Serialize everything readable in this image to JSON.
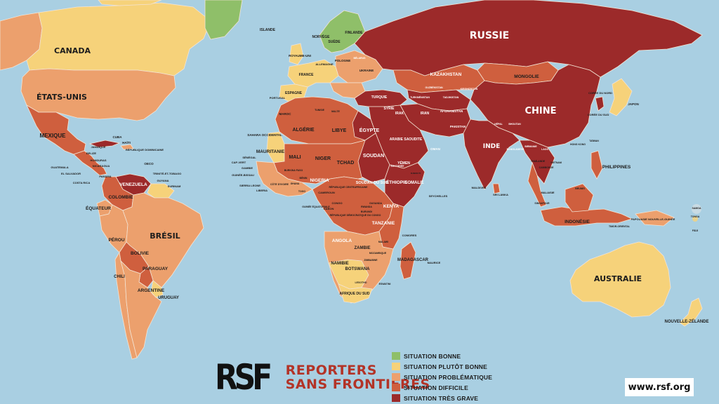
{
  "colors": {
    "ocean": "#a9cfe2",
    "bonne": "#8fbf69",
    "plutot_bonne": "#f6d27a",
    "problematique": "#eca06d",
    "difficile": "#cf5f3e",
    "tres_grave": "#9c2a2a",
    "border": "#f3e4d4"
  },
  "legend": [
    {
      "label": "SITUATION BONNE",
      "color": "#8fbf69"
    },
    {
      "label": "SITUATION PLUTÔT BONNE",
      "color": "#f6d27a"
    },
    {
      "label": "SITUATION PROBLÉMATIQUE",
      "color": "#eca06d"
    },
    {
      "label": "SITUATION DIFFICILE",
      "color": "#cf5f3e"
    },
    {
      "label": "SITUATION TRÈS GRAVE",
      "color": "#9c2a2a"
    }
  ],
  "logo": {
    "mark": "RSF",
    "line1": "REPORTERS",
    "line2": "SANS FRONTIÈRES"
  },
  "url": "www.rsf.org",
  "labels": {
    "russie": "RUSSIE",
    "canada": "CANADA",
    "etats_unis": "ÉTATS-UNIS",
    "chine": "CHINE",
    "australie": "AUSTRALIE",
    "bresil": "BRÉSIL",
    "inde": "INDE",
    "mexique": "MEXIQUE",
    "kazakhstan": "KAZAKHSTAN",
    "mongolie": "MONGOLIE",
    "algerie": "ALGÉRIE",
    "libye": "LIBYE",
    "egypte": "ÉGYPTE",
    "mali": "MALI",
    "niger": "NIGER",
    "tchad": "TCHAD",
    "soudan": "SOUDAN",
    "mauritanie": "MAURITANIE",
    "nigeria": "NIGERIA",
    "ethiopie": "ÉTHIOPIE",
    "somalie": "SOMALIE",
    "kenya": "KENYA",
    "tanzanie": "TANZANIE",
    "angola": "ANGOLA",
    "zambie": "ZAMBIE",
    "namibie": "NAMIBIE",
    "botswana": "BOTSWANA",
    "madagascar": "MADAGASCAR",
    "venezuela": "VENEZUELA",
    "colombie": "COLOMBIE",
    "equateur": "ÉQUATEUR",
    "perou": "PÉROU",
    "bolivie": "BOLIVIE",
    "paraguay": "PARAGUAY",
    "argentine": "ARGENTINE",
    "uruguay": "URUGUAY",
    "chili": "CHILI",
    "indonesie": "INDONÉSIE",
    "philippines": "PHILIPPINES",
    "nouvelle_zelande": "NOUVELLE-ZÉLANDE",
    "islande": "ISLANDE",
    "norvege": "NORVÈGE",
    "suede": "SUÈDE",
    "finlande": "FINLANDE",
    "royaume_uni": "ROYAUME-UNI",
    "france": "FRANCE",
    "espagne": "ESPAGNE",
    "portugal": "PORTUGAL",
    "allemagne": "ALLEMAGNE",
    "pologne": "POLOGNE",
    "ukraine": "UKRAINE",
    "belarus": "BÉLARUS",
    "turquie": "TURQUIE",
    "syrie": "SYRIE",
    "irak": "IRAK",
    "iran": "IRAN",
    "arabie_saoudite": "ARABIE SAOUDITE",
    "yemen": "YÉMEN",
    "oman": "OMAN",
    "afghanistan": "AFGHANISTAN",
    "pakistan": "PAKISTAN",
    "turkmenistan": "TURKMÉNISTAN",
    "ouzbekistan": "OUZBÉKISTAN",
    "kirghizistan": "KIRGHIZISTAN",
    "tadjikistan": "TADJIKISTAN",
    "coree_nord": "CORÉE DU NORD",
    "coree_sud": "CORÉE DU SUD",
    "japon": "JAPON",
    "maroc": "MAROC",
    "tunisie": "TUNISIE",
    "malte": "MALTE",
    "sahara_occidental": "SAHARA OCCIDENTAL",
    "senegal": "SÉNÉGAL",
    "cap_vert": "CAP-VERT",
    "gambie": "GAMBIE",
    "guinee_bissau": "GUINÉE-BISSAU",
    "guinee": "GUINÉE",
    "sierra_leone": "SIERRA LEONE",
    "liberia": "LIBERIA",
    "cote_ivoire": "CÔTE D'IVOIRE",
    "burkina": "BURKINA FASO",
    "ghana": "GHANA",
    "togo": "TOGO",
    "benin": "BÉNIN",
    "cameroun": "CAMEROUN",
    "rca": "RÉPUBLIQUE CENTRAFRICAINE",
    "guinee_equatoriale": "GUINÉE ÉQUATORIALE",
    "gabon": "GABON",
    "congo": "CONGO",
    "rdc": "RÉPUBLIQUE DÉMOCRATIQUE DU CONGO",
    "soudan_sud": "SOUDAN DU SUD",
    "erythree": "ÉRYTHRÉE",
    "djibouti": "DJIBOUTI",
    "ouganda": "OUGANDA",
    "rwanda": "RWANDA",
    "burundi": "BURUNDI",
    "malawi": "MALAWI",
    "mozambique": "MOZAMBIQUE",
    "zimbabwe": "ZIMBABWE",
    "afrique_sud": "AFRIQUE DU SUD",
    "lesotho": "LESOTHO",
    "eswatini": "ESWATINI",
    "comores": "COMORES",
    "maurice": "MAURICE",
    "seychelles": "SEYCHELLES",
    "maldives": "MALDIVES",
    "sri_lanka": "SRI LANKA",
    "bangladesh": "BANGLADESH",
    "bhoutan": "BHOUTAN",
    "nepal": "NÉPAL",
    "birmanie": "BIRMANIE",
    "laos": "LAOS",
    "thailande": "THAÏLANDE",
    "cambodge": "CAMBODGE",
    "vietnam": "VIETNAM",
    "hong_kong": "HONG KONG",
    "taiwan": "TAÏWAN",
    "malaisie": "MALAISIE",
    "brunei": "BRUNEI",
    "singapour": "SINGAPOUR",
    "timor": "TIMOR-ORIENTAL",
    "papouasie": "PAPOUASIE NOUVELLE-GUINÉE",
    "samoa": "SAMOA",
    "tonga": "TONGA",
    "fidji": "FIDJI",
    "cuba": "CUBA",
    "haiti": "HAÏTI",
    "rep_dominicaine": "RÉPUBLIQUE DOMINICAINE",
    "jamaique": "JAMAÏQUE",
    "belize": "BELIZE",
    "guatemala": "GUATEMALA",
    "honduras": "HONDURAS",
    "el_salvador": "EL SALVADOR",
    "nicaragua": "NICARAGUA",
    "costa_rica": "COSTA RICA",
    "panama": "PANAMA",
    "oeco": "OECO",
    "trinite": "TRINITÉ-ET-TOBAGO",
    "guyana": "GUYANA",
    "suriname": "SURINAM"
  }
}
